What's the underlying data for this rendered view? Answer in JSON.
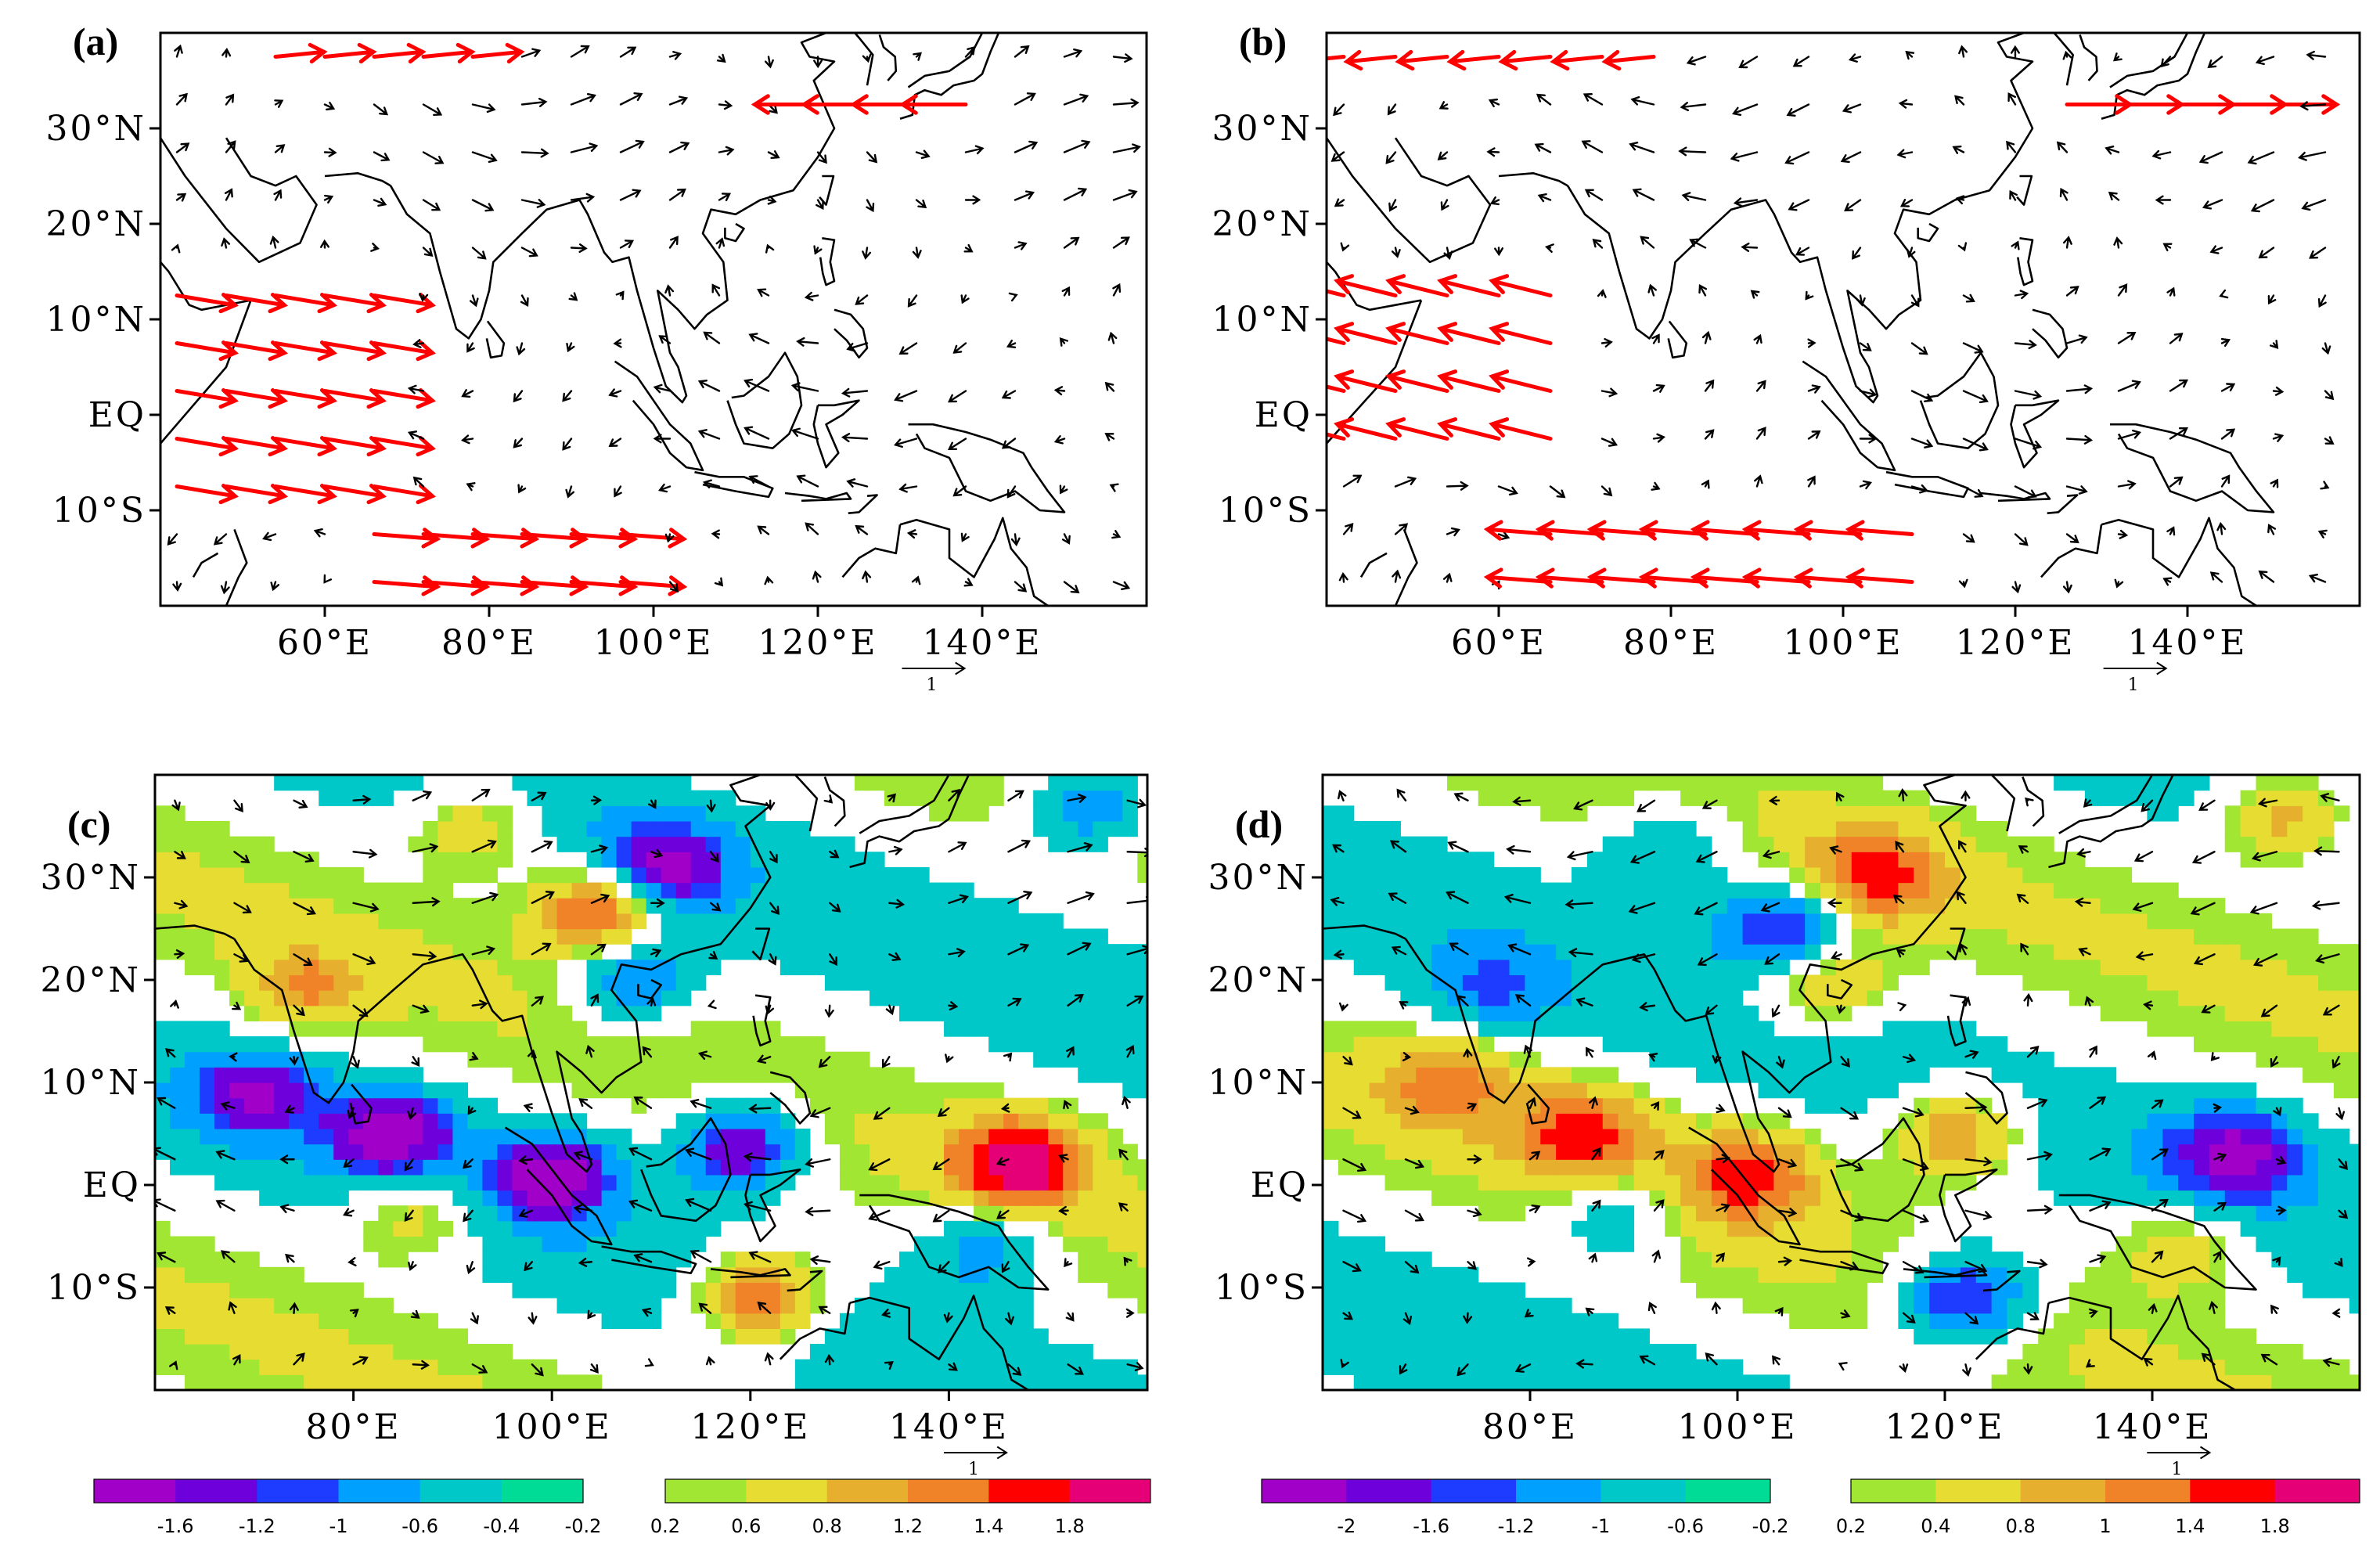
{
  "chart_data": [
    {
      "panel": "a",
      "type": "vector-map",
      "label": "(a)",
      "lon_range": [
        40,
        160
      ],
      "lat_range": [
        -20,
        40
      ],
      "xticks": [
        {
          "value": 60,
          "label": "60°E"
        },
        {
          "value": 80,
          "label": "80°E"
        },
        {
          "value": 100,
          "label": "100°E"
        },
        {
          "value": 120,
          "label": "120°E"
        },
        {
          "value": 140,
          "label": "140°E"
        }
      ],
      "yticks": [
        {
          "value": 30,
          "label": "30°N"
        },
        {
          "value": 20,
          "label": "20°N"
        },
        {
          "value": 10,
          "label": "10°N"
        },
        {
          "value": 0,
          "label": "EQ"
        },
        {
          "value": -10,
          "label": "10°S"
        }
      ],
      "reference_vector": "1",
      "significant_color": "#ff0000",
      "vector_color": "#000000",
      "significant_regions": [
        {
          "lon": [
            42,
            70
          ],
          "lat": [
            -12,
            14
          ],
          "u": 1.2,
          "v": -0.2
        },
        {
          "lon": [
            66,
            100
          ],
          "lat": [
            -18,
            -8
          ],
          "u": 1.3,
          "v": -0.1
        },
        {
          "lon": [
            120,
            160
          ],
          "lat": [
            -2,
            2
          ],
          "u": -1.4,
          "v": 0.0
        },
        {
          "lon": [
            120,
            142
          ],
          "lat": [
            29,
            33
          ],
          "u": -1.3,
          "v": 0.0
        },
        {
          "lon": [
            50,
            80
          ],
          "lat": [
            33,
            40
          ],
          "u": 1.0,
          "v": 0.1
        }
      ]
    },
    {
      "panel": "b",
      "type": "vector-map",
      "label": "(b)",
      "lon_range": [
        40,
        160
      ],
      "lat_range": [
        -20,
        40
      ],
      "xticks": [
        {
          "value": 60,
          "label": "60°E"
        },
        {
          "value": 80,
          "label": "80°E"
        },
        {
          "value": 100,
          "label": "100°E"
        },
        {
          "value": 120,
          "label": "120°E"
        },
        {
          "value": 140,
          "label": "140°E"
        }
      ],
      "yticks": [
        {
          "value": 30,
          "label": "30°N"
        },
        {
          "value": 20,
          "label": "20°N"
        },
        {
          "value": 10,
          "label": "10°N"
        },
        {
          "value": 0,
          "label": "EQ"
        },
        {
          "value": -10,
          "label": "10°S"
        }
      ],
      "reference_vector": "1",
      "significant_color": "#ff0000",
      "vector_color": "#000000",
      "significant_regions": [
        {
          "lon": [
            42,
            70
          ],
          "lat": [
            -6,
            14
          ],
          "u": -1.2,
          "v": 0.3
        },
        {
          "lon": [
            66,
            110
          ],
          "lat": [
            -20,
            -8
          ],
          "u": -1.3,
          "v": 0.1
        },
        {
          "lon": [
            120,
            160
          ],
          "lat": [
            -2,
            2
          ],
          "u": 1.4,
          "v": 0.0
        },
        {
          "lon": [
            122,
            150
          ],
          "lat": [
            29,
            33
          ],
          "u": 1.3,
          "v": 0.0
        },
        {
          "lon": [
            42,
            80
          ],
          "lat": [
            33,
            40
          ],
          "u": -1.0,
          "v": -0.1
        }
      ]
    },
    {
      "panel": "c",
      "type": "filled-contour-vector-map",
      "label": "(c)",
      "lon_range": [
        60,
        160
      ],
      "lat_range": [
        -20,
        40
      ],
      "xticks": [
        {
          "value": 80,
          "label": "80°E"
        },
        {
          "value": 100,
          "label": "100°E"
        },
        {
          "value": 120,
          "label": "120°E"
        },
        {
          "value": 140,
          "label": "140°E"
        }
      ],
      "yticks": [
        {
          "value": 30,
          "label": "30°N"
        },
        {
          "value": 20,
          "label": "20°N"
        },
        {
          "value": 10,
          "label": "10°N"
        },
        {
          "value": 0,
          "label": "EQ"
        },
        {
          "value": -10,
          "label": "10°S"
        }
      ],
      "reference_vector": "1",
      "anomaly_centers": [
        {
          "lon": 105,
          "lat": 27,
          "value": 1.8
        },
        {
          "lon": 111,
          "lat": 31,
          "value": -1.6
        },
        {
          "lon": 108,
          "lat": 20,
          "value": -1.2
        },
        {
          "lon": 84,
          "lat": 5,
          "value": -1.7
        },
        {
          "lon": 70,
          "lat": 9,
          "value": -1.3
        },
        {
          "lon": 100,
          "lat": 1,
          "value": -1.8
        },
        {
          "lon": 119,
          "lat": 4,
          "value": -1.8
        },
        {
          "lon": 147,
          "lat": 2,
          "value": 1.9
        },
        {
          "lon": 121,
          "lat": -11,
          "value": 1.7
        },
        {
          "lon": 144,
          "lat": -6,
          "value": -1.0
        },
        {
          "lon": 86,
          "lat": -3,
          "value": 0.9
        },
        {
          "lon": 154,
          "lat": 37,
          "value": -1.3
        },
        {
          "lon": 75,
          "lat": 19,
          "value": 0.8
        },
        {
          "lon": 92,
          "lat": 35,
          "value": 0.9
        }
      ],
      "colorbar": {
        "levels": [
          -1.8,
          -1.6,
          -1.4,
          -1.2,
          -1.0,
          -0.8,
          -0.6,
          -0.4,
          -0.2,
          0.2,
          0.4,
          0.6,
          0.8,
          1.0,
          1.2,
          1.4,
          1.6,
          1.8
        ],
        "labels": [
          "-1.6",
          "-1.2",
          "-1",
          "-0.6",
          "-0.4",
          "-0.2",
          "0.2",
          "0.6",
          "0.8",
          "1.2",
          "1.4",
          "1.8"
        ]
      }
    },
    {
      "panel": "d",
      "type": "filled-contour-vector-map",
      "label": "(d)",
      "lon_range": [
        60,
        160
      ],
      "lat_range": [
        -20,
        40
      ],
      "xticks": [
        {
          "value": 80,
          "label": "80°E"
        },
        {
          "value": 100,
          "label": "100°E"
        },
        {
          "value": 120,
          "label": "120°E"
        },
        {
          "value": 140,
          "label": "140°E"
        }
      ],
      "yticks": [
        {
          "value": 30,
          "label": "30°N"
        },
        {
          "value": 20,
          "label": "20°N"
        },
        {
          "value": 10,
          "label": "10°N"
        },
        {
          "value": 0,
          "label": "EQ"
        },
        {
          "value": -10,
          "label": "10°S"
        }
      ],
      "reference_vector": "1",
      "anomaly_centers": [
        {
          "lon": 105,
          "lat": 25,
          "value": -1.8
        },
        {
          "lon": 113,
          "lat": 30,
          "value": 1.6
        },
        {
          "lon": 108,
          "lat": 20,
          "value": 1.2
        },
        {
          "lon": 85,
          "lat": 5,
          "value": 1.6
        },
        {
          "lon": 72,
          "lat": 10,
          "value": 1.2
        },
        {
          "lon": 101,
          "lat": 1,
          "value": 1.7
        },
        {
          "lon": 121,
          "lat": 5,
          "value": 1.4
        },
        {
          "lon": 148,
          "lat": 3,
          "value": -1.8
        },
        {
          "lon": 122,
          "lat": -11,
          "value": -1.8
        },
        {
          "lon": 143,
          "lat": -6,
          "value": 0.8
        },
        {
          "lon": 88,
          "lat": -3,
          "value": -0.8
        },
        {
          "lon": 153,
          "lat": 36,
          "value": 1.3
        },
        {
          "lon": 76,
          "lat": 19,
          "value": -0.8
        },
        {
          "lon": 93,
          "lat": 33,
          "value": -0.8
        }
      ],
      "colorbar": {
        "levels": [
          -2.0,
          -1.8,
          -1.6,
          -1.4,
          -1.2,
          -1.0,
          -0.8,
          -0.6,
          -0.4,
          -0.2,
          0.2,
          0.4,
          0.6,
          0.8,
          1.0,
          1.2,
          1.4,
          1.6,
          1.8,
          2.0
        ],
        "labels": [
          "-2",
          "-1.6",
          "-1.2",
          "-1",
          "-0.6",
          "-0.2",
          "0.2",
          "0.4",
          "0.8",
          "1",
          "1.4",
          "1.8"
        ]
      }
    }
  ],
  "colors": {
    "palette": [
      "#a000c8",
      "#6e00dc",
      "#1e3cff",
      "#00a0ff",
      "#00c8c8",
      "#00dc96",
      "#a0e632",
      "#e6dc32",
      "#e6af2d",
      "#f08228",
      "#ff0000",
      "#e60078"
    ],
    "land_outline": "#000000",
    "significant_vector": "#ff0000",
    "vector": "#000000"
  }
}
